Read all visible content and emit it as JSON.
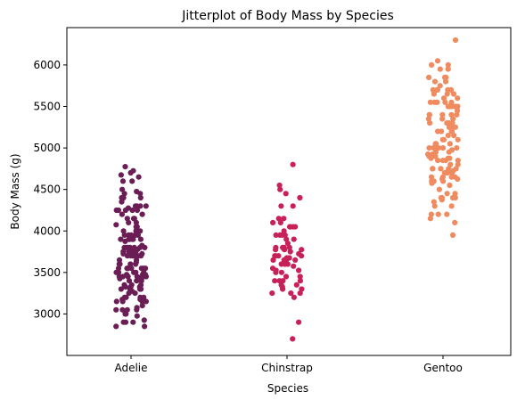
{
  "chart_data": {
    "type": "scatter",
    "subtype": "stripplot",
    "title": "Jitterplot of Body Mass by Species",
    "xlabel": "Species",
    "ylabel": "Body Mass (g)",
    "categories": [
      "Adelie",
      "Chinstrap",
      "Gentoo"
    ],
    "ylim": [
      2500,
      6450
    ],
    "yticks": [
      3000,
      3500,
      4000,
      4500,
      5000,
      5500,
      6000
    ],
    "grid": false,
    "colors": {
      "Adelie": "#6b1d55",
      "Chinstrap": "#c8215a",
      "Gentoo": "#f08b60"
    },
    "series": [
      {
        "category": "Adelie",
        "values": [
          3750,
          3800,
          3250,
          3450,
          3650,
          3625,
          4675,
          3475,
          4250,
          3300,
          3700,
          3200,
          3800,
          4400,
          3700,
          3450,
          4500,
          3325,
          4200,
          3400,
          3600,
          3800,
          3950,
          3800,
          3800,
          3550,
          3200,
          3150,
          3950,
          3250,
          3900,
          3300,
          3900,
          3325,
          4150,
          3950,
          3550,
          3300,
          4650,
          3150,
          3900,
          3100,
          4400,
          3000,
          4600,
          3425,
          2975,
          3450,
          4150,
          3500,
          4300,
          3450,
          4050,
          2900,
          3700,
          3550,
          3800,
          2850,
          3750,
          3150,
          4400,
          3600,
          4050,
          2850,
          3950,
          3350,
          4100,
          3050,
          4450,
          3600,
          3900,
          3550,
          4150,
          3700,
          4250,
          3700,
          3900,
          3550,
          4000,
          3200,
          4700,
          3800,
          4200,
          3350,
          3550,
          3800,
          3500,
          3950,
          3600,
          3550,
          4300,
          3400,
          4450,
          3300,
          4300,
          3700,
          4350,
          2900,
          4100,
          3725,
          4725,
          3075,
          4250,
          2925,
          3550,
          3750,
          3900,
          3175,
          4775,
          3825,
          4600,
          3200,
          4275,
          3900,
          4075,
          2900,
          3775,
          3350,
          3325,
          3150,
          3500,
          3450,
          3875,
          3050,
          4000,
          3275,
          4300,
          3050,
          4000,
          3325,
          3500,
          3500,
          4475,
          3425,
          3900,
          3175,
          3975,
          3400,
          4250,
          3400,
          3475,
          3050,
          3725,
          3000,
          3650,
          4250,
          3475,
          3450,
          3750,
          3700,
          4000
        ]
      },
      {
        "category": "Chinstrap",
        "values": [
          3500,
          3900,
          3650,
          3525,
          3725,
          3950,
          3250,
          3750,
          4150,
          3700,
          3800,
          3775,
          3700,
          4050,
          3575,
          4050,
          3300,
          3700,
          3450,
          4400,
          3600,
          3400,
          2900,
          3800,
          3300,
          4150,
          3400,
          3800,
          3700,
          4550,
          3200,
          4300,
          3350,
          4100,
          3600,
          3900,
          3850,
          4800,
          2700,
          4500,
          3950,
          3650,
          3550,
          3500,
          3675,
          4450,
          3400,
          4300,
          3250,
          3675,
          3325,
          3950,
          3600,
          4050,
          3350,
          3450,
          3250,
          4050,
          3800,
          3525,
          3950,
          3650,
          3650,
          4000,
          3400,
          3775,
          4100,
          3775
        ]
      },
      {
        "category": "Gentoo",
        "values": [
          4500,
          5700,
          4450,
          5700,
          5400,
          4550,
          4800,
          5200,
          4400,
          5150,
          4650,
          5550,
          4650,
          5850,
          4200,
          5850,
          4150,
          6300,
          4800,
          5350,
          5700,
          5000,
          4400,
          5050,
          5000,
          5100,
          4100,
          5650,
          4600,
          5550,
          5250,
          4700,
          5050,
          6050,
          5150,
          5400,
          4950,
          5250,
          4350,
          5350,
          3950,
          5700,
          4300,
          4750,
          5550,
          4900,
          4200,
          5400,
          5100,
          5300,
          4850,
          5300,
          4400,
          5000,
          4900,
          5050,
          4300,
          5000,
          4450,
          5550,
          4200,
          5300,
          4400,
          5650,
          4700,
          5700,
          4650,
          5800,
          4700,
          5550,
          4750,
          5000,
          5100,
          5200,
          4700,
          5800,
          4600,
          6000,
          4750,
          5950,
          4625,
          5450,
          4725,
          5350,
          4750,
          5600,
          4600,
          5300,
          4875,
          5550,
          4950,
          5400,
          4750,
          5650,
          4850,
          5200,
          4925,
          4875,
          4625,
          5250,
          4850,
          5600,
          4975,
          5500,
          4725,
          5500,
          4700,
          5500,
          4575,
          5500,
          5000,
          5950,
          4650,
          5500,
          4375,
          5850,
          4875,
          6000,
          4925,
          4850,
          5750,
          5200,
          5400
        ]
      }
    ]
  }
}
